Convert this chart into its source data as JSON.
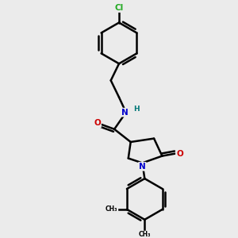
{
  "bg_color": "#ebebeb",
  "bond_color": "#000000",
  "bond_width": 1.8,
  "atom_colors": {
    "C": "#000000",
    "N": "#0000cc",
    "O": "#cc0000",
    "Cl": "#22aa22",
    "H": "#007777"
  },
  "figsize": [
    3.0,
    3.0
  ],
  "dpi": 100,
  "xlim": [
    0,
    10
  ],
  "ylim": [
    0,
    10
  ]
}
